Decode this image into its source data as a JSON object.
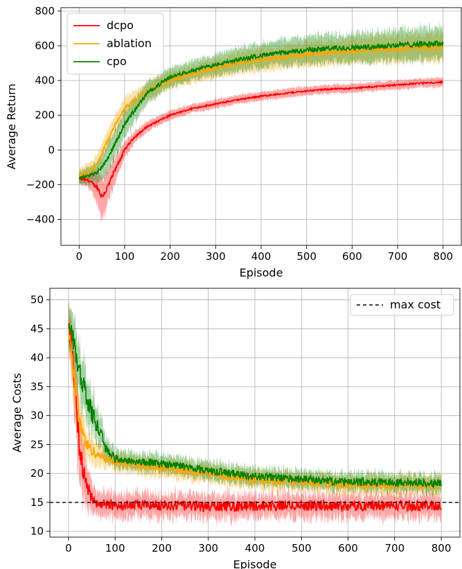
{
  "chart_data": [
    {
      "type": "line",
      "title": "",
      "xlabel": "Episode",
      "ylabel": "Average Return",
      "xlim": [
        -40,
        840
      ],
      "ylim": [
        -550,
        820
      ],
      "xticks": [
        0,
        100,
        200,
        300,
        400,
        500,
        600,
        700,
        800
      ],
      "yticks": [
        -400,
        -200,
        0,
        200,
        400,
        600,
        800
      ],
      "ytick_labels": [
        "−400",
        "−200",
        "0",
        "200",
        "400",
        "600",
        "800"
      ],
      "grid": true,
      "legend": "top-left",
      "series": [
        {
          "name": "dcpo",
          "color": "#ff0000",
          "x": [
            0,
            20,
            40,
            50,
            60,
            80,
            100,
            120,
            150,
            200,
            250,
            300,
            350,
            400,
            450,
            500,
            550,
            600,
            650,
            700,
            750,
            800
          ],
          "y": [
            -165,
            -175,
            -215,
            -270,
            -230,
            -110,
            0,
            70,
            135,
            200,
            240,
            265,
            290,
            310,
            325,
            340,
            350,
            355,
            365,
            375,
            385,
            390
          ],
          "band": [
            25,
            40,
            90,
            120,
            100,
            70,
            45,
            35,
            30,
            25,
            25,
            25,
            25,
            25,
            25,
            25,
            25,
            25,
            25,
            25,
            25,
            25
          ]
        },
        {
          "name": "ablation",
          "color": "#ffa500",
          "x": [
            0,
            20,
            40,
            60,
            80,
            100,
            150,
            200,
            250,
            300,
            350,
            400,
            450,
            500,
            550,
            600,
            650,
            700,
            750,
            800
          ],
          "y": [
            -150,
            -130,
            -80,
            40,
            150,
            240,
            340,
            400,
            440,
            470,
            500,
            520,
            535,
            550,
            560,
            570,
            580,
            580,
            590,
            595
          ],
          "band": [
            45,
            45,
            50,
            55,
            55,
            55,
            50,
            50,
            50,
            55,
            60,
            65,
            65,
            70,
            70,
            70,
            75,
            75,
            75,
            80
          ]
        },
        {
          "name": "cpo",
          "color": "#008000",
          "x": [
            0,
            20,
            40,
            60,
            80,
            100,
            150,
            200,
            250,
            300,
            350,
            400,
            450,
            500,
            550,
            600,
            650,
            700,
            750,
            800
          ],
          "y": [
            -160,
            -150,
            -130,
            -60,
            40,
            150,
            330,
            420,
            460,
            490,
            520,
            545,
            560,
            575,
            585,
            590,
            595,
            605,
            610,
            615
          ],
          "band": [
            40,
            45,
            60,
            80,
            80,
            75,
            60,
            55,
            55,
            60,
            65,
            70,
            75,
            80,
            80,
            85,
            85,
            90,
            90,
            95
          ]
        }
      ]
    },
    {
      "type": "line",
      "title": "",
      "xlabel": "Episode",
      "ylabel": "Average Costs",
      "xlim": [
        -40,
        840
      ],
      "ylim": [
        9,
        52
      ],
      "xticks": [
        0,
        100,
        200,
        300,
        400,
        500,
        600,
        700,
        800
      ],
      "yticks": [
        10,
        15,
        20,
        25,
        30,
        35,
        40,
        45,
        50
      ],
      "grid": true,
      "legend": "top-right",
      "reference_line": {
        "name": "max cost",
        "y": 15,
        "color": "#000000",
        "style": "dashed"
      },
      "series": [
        {
          "name": "dcpo",
          "color": "#ff0000",
          "x": [
            0,
            10,
            20,
            30,
            40,
            50,
            60,
            80,
            100,
            150,
            200,
            300,
            400,
            500,
            600,
            700,
            800
          ],
          "y": [
            46,
            40,
            27,
            21,
            18,
            16,
            14.8,
            14.6,
            14.5,
            14.5,
            14.5,
            14.3,
            14.4,
            14.5,
            14.4,
            14.5,
            14.4
          ],
          "band": [
            3,
            5,
            6,
            5,
            3.5,
            2.5,
            2,
            2,
            2,
            2,
            2,
            2,
            2,
            2,
            2,
            2,
            2
          ]
        },
        {
          "name": "ablation",
          "color": "#ffa500",
          "x": [
            0,
            10,
            20,
            30,
            40,
            50,
            60,
            80,
            100,
            150,
            200,
            250,
            300,
            350,
            400,
            500,
            600,
            700,
            800
          ],
          "y": [
            45,
            38,
            31,
            27,
            25,
            24,
            23.5,
            22.5,
            22,
            21.5,
            21,
            20.5,
            20,
            19.5,
            19,
            18.5,
            18,
            18,
            18
          ],
          "band": [
            3,
            4,
            4,
            3,
            2.5,
            2,
            2,
            1.5,
            1.5,
            1.5,
            1.5,
            1.5,
            1.5,
            1.5,
            1.5,
            1.5,
            1.5,
            1.5,
            1.5
          ]
        },
        {
          "name": "cpo",
          "color": "#008000",
          "x": [
            0,
            10,
            20,
            30,
            40,
            50,
            60,
            70,
            80,
            100,
            150,
            200,
            250,
            300,
            350,
            400,
            500,
            600,
            700,
            800
          ],
          "y": [
            46,
            43,
            39,
            36,
            33,
            30.5,
            28.5,
            26.5,
            24.5,
            22.5,
            22,
            21.7,
            21.2,
            20.5,
            20,
            19.5,
            19,
            18.5,
            18.5,
            18.3
          ],
          "band": [
            3.5,
            4,
            4.5,
            4.5,
            4,
            3.5,
            3,
            2.5,
            2,
            1.5,
            1.5,
            1.5,
            1.5,
            1.5,
            1.5,
            1.5,
            1.5,
            1.5,
            1.5,
            1.5
          ]
        }
      ]
    }
  ]
}
